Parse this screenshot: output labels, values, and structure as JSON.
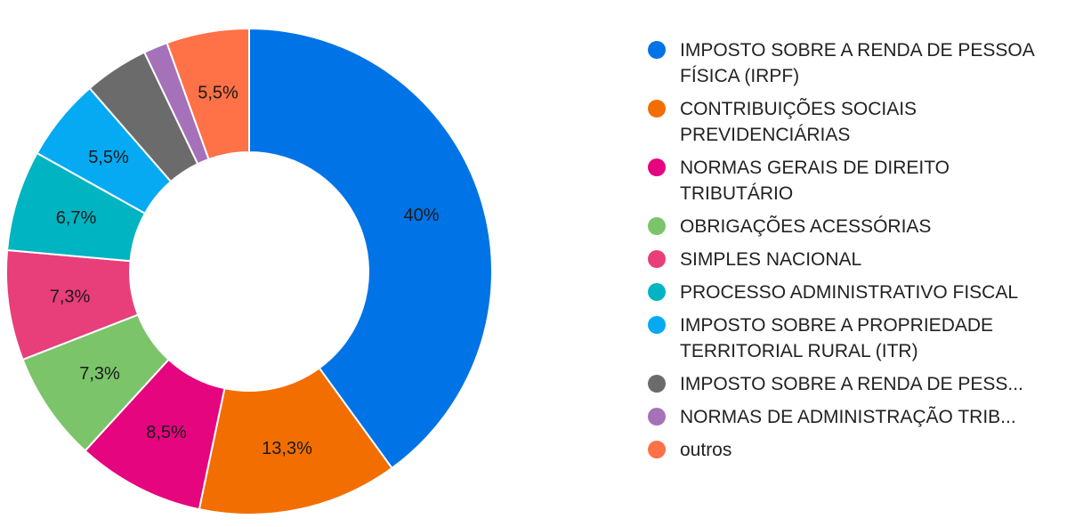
{
  "chart_data": {
    "type": "pie",
    "donut": true,
    "title": "",
    "legend_position": "right",
    "slices": [
      {
        "name": "IMPOSTO SOBRE A RENDA DE PESSOA FÍSICA (IRPF)",
        "value": 40.0,
        "label": "40%",
        "color": "#0073E6"
      },
      {
        "name": "CONTRIBUIÇÕES SOCIAIS PREVIDENCIÁRIAS",
        "value": 13.3,
        "label": "13,3%",
        "color": "#F26E00"
      },
      {
        "name": "NORMAS GERAIS DE DIREITO TRIBUTÁRIO",
        "value": 8.5,
        "label": "8,5%",
        "color": "#E5057E"
      },
      {
        "name": "OBRIGAÇÕES ACESSÓRIAS",
        "value": 7.3,
        "label": "7,3%",
        "color": "#7BC46A"
      },
      {
        "name": "SIMPLES NACIONAL",
        "value": 7.3,
        "label": "7,3%",
        "color": "#E83E7A"
      },
      {
        "name": "PROCESSO ADMINISTRATIVO FISCAL",
        "value": 6.7,
        "label": "6,7%",
        "color": "#00B4C2"
      },
      {
        "name": "IMPOSTO SOBRE A PROPRIEDADE TERRITORIAL RURAL (ITR)",
        "value": 5.5,
        "label": "5,5%",
        "color": "#05AAF3"
      },
      {
        "name": "IMPOSTO SOBRE A RENDA DE PESS...",
        "value": 4.3,
        "label": "",
        "color": "#6B6B6B"
      },
      {
        "name": "NORMAS DE ADMINISTRAÇÃO TRIB...",
        "value": 1.6,
        "label": "",
        "color": "#A571B9"
      },
      {
        "name": "outros",
        "value": 5.5,
        "label": "5,5%",
        "color": "#FF7146"
      }
    ]
  }
}
